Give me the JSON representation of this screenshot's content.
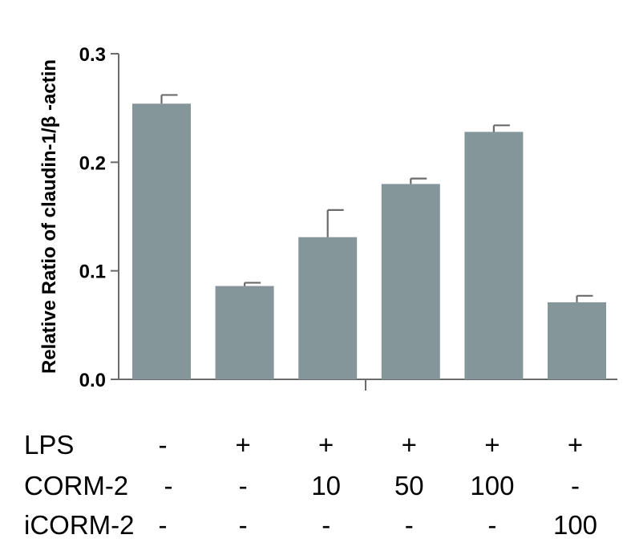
{
  "chart_data": {
    "type": "bar",
    "ylabel": "Relative Ratio of claudin-1/β -actin",
    "ylim": [
      0,
      0.3
    ],
    "yticks": [
      "0.0",
      "0.1",
      "0.2",
      "0.3"
    ],
    "ytick_values": [
      0,
      0.1,
      0.2,
      0.3
    ],
    "values": [
      0.254,
      0.086,
      0.131,
      0.18,
      0.228,
      0.071
    ],
    "errors": [
      0.008,
      0.003,
      0.025,
      0.005,
      0.006,
      0.006
    ],
    "bar_color": "#84969a",
    "grid": false,
    "conditions": [
      {
        "label": "LPS",
        "values": [
          "-",
          "+",
          "+",
          "+",
          "+",
          "+"
        ]
      },
      {
        "label": "CORM-2",
        "values": [
          "-",
          "-",
          "10",
          "50",
          "100",
          "-"
        ]
      },
      {
        "label": "iCORM-2",
        "values": [
          "-",
          "-",
          "-",
          "-",
          "-",
          "100"
        ]
      }
    ],
    "condition_dashes": [
      "-",
      "-",
      "-"
    ]
  }
}
